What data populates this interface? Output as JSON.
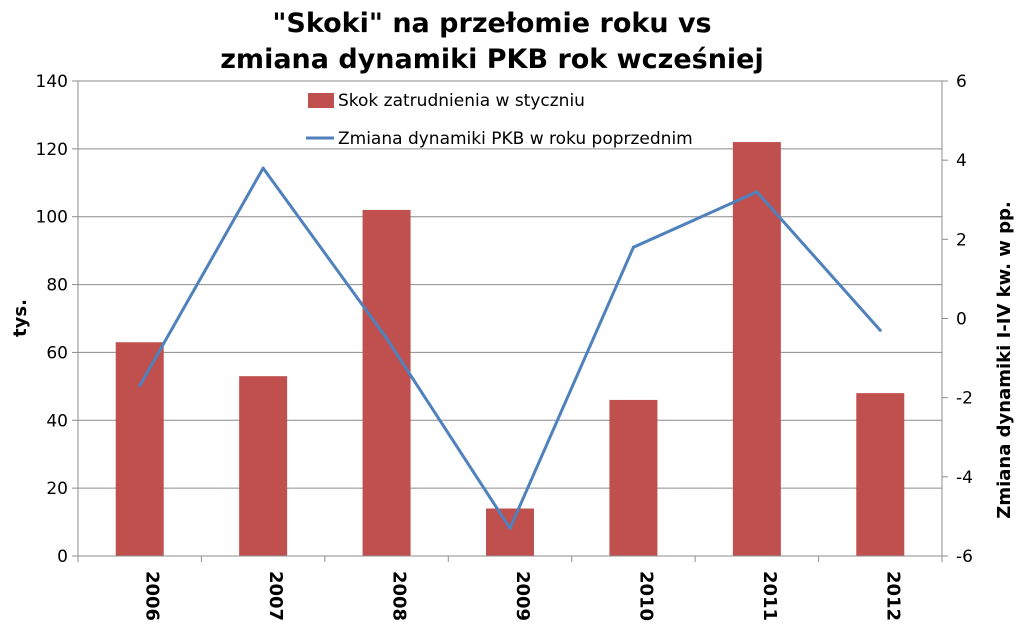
{
  "chart_data": {
    "type": "bar",
    "title_lines": [
      "\"Skoki\" na przełomie roku vs",
      "zmiana dynamiki PKB rok wcześniej"
    ],
    "categories": [
      "2006",
      "2007",
      "2008",
      "2009",
      "2010",
      "2011",
      "2012"
    ],
    "ylabel": "tys.",
    "y2label": "Zmiana dynamiki I-IV kw. w pp.",
    "ylim": [
      0,
      140
    ],
    "y2lim": [
      -6,
      6
    ],
    "yticks": [
      "0",
      "20",
      "40",
      "60",
      "80",
      "100",
      "120",
      "140"
    ],
    "y2ticks": [
      "-6",
      "-4",
      "-2",
      "0",
      "2",
      "4",
      "6"
    ],
    "grid": true,
    "legend_position": "top",
    "series": [
      {
        "name": "Skok zatrudnienia w styczniu",
        "type": "bar",
        "axis": "left",
        "color": "#C0504D",
        "values": [
          63,
          53,
          102,
          14,
          46,
          122,
          48
        ]
      },
      {
        "name": "Zmiana dynamiki PKB w roku poprzednim",
        "type": "line",
        "axis": "right",
        "color": "#4F81BD",
        "values": [
          -1.7,
          3.8,
          -0.5,
          -5.3,
          1.8,
          3.2,
          -0.3
        ]
      }
    ]
  }
}
